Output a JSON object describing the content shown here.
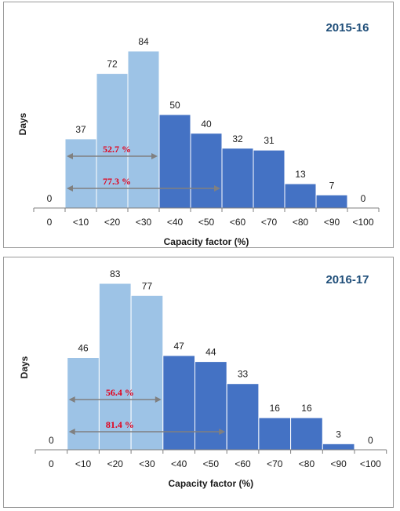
{
  "chart_data": [
    {
      "type": "bar",
      "title": "2015-16",
      "xlabel": "Capacity factor (%)",
      "ylabel": "Days",
      "categories": [
        "0",
        "<10",
        "<20",
        "<30",
        "<40",
        "<50",
        "<60",
        "<70",
        "<80",
        "<90",
        "<100"
      ],
      "values": [
        0,
        37,
        72,
        84,
        50,
        40,
        32,
        31,
        13,
        7,
        0
      ],
      "ylim": [
        0,
        90
      ],
      "grid": false,
      "colors": {
        "low_band": "#9dc3e6",
        "high_band": "#4472c4",
        "low_band_end_category": "<30"
      },
      "annotations": [
        {
          "label": "52.7 %",
          "from_category": "<10",
          "to_category": "<30"
        },
        {
          "label": "77.3 %",
          "from_category": "<10",
          "to_category": "<50"
        }
      ]
    },
    {
      "type": "bar",
      "title": "2016-17",
      "xlabel": "Capacity factor (%)",
      "ylabel": "Days",
      "categories": [
        "0",
        "<10",
        "<20",
        "<30",
        "<40",
        "<50",
        "<60",
        "<70",
        "<80",
        "<90",
        "<100"
      ],
      "values": [
        0,
        46,
        83,
        77,
        47,
        44,
        33,
        16,
        16,
        3,
        0
      ],
      "ylim": [
        0,
        90
      ],
      "grid": false,
      "colors": {
        "low_band": "#9dc3e6",
        "high_band": "#4472c4",
        "low_band_end_category": "<30"
      },
      "annotations": [
        {
          "label": "56.4 %",
          "from_category": "<10",
          "to_category": "<30"
        },
        {
          "label": "81.4 %",
          "from_category": "<10",
          "to_category": "<50"
        }
      ]
    }
  ]
}
